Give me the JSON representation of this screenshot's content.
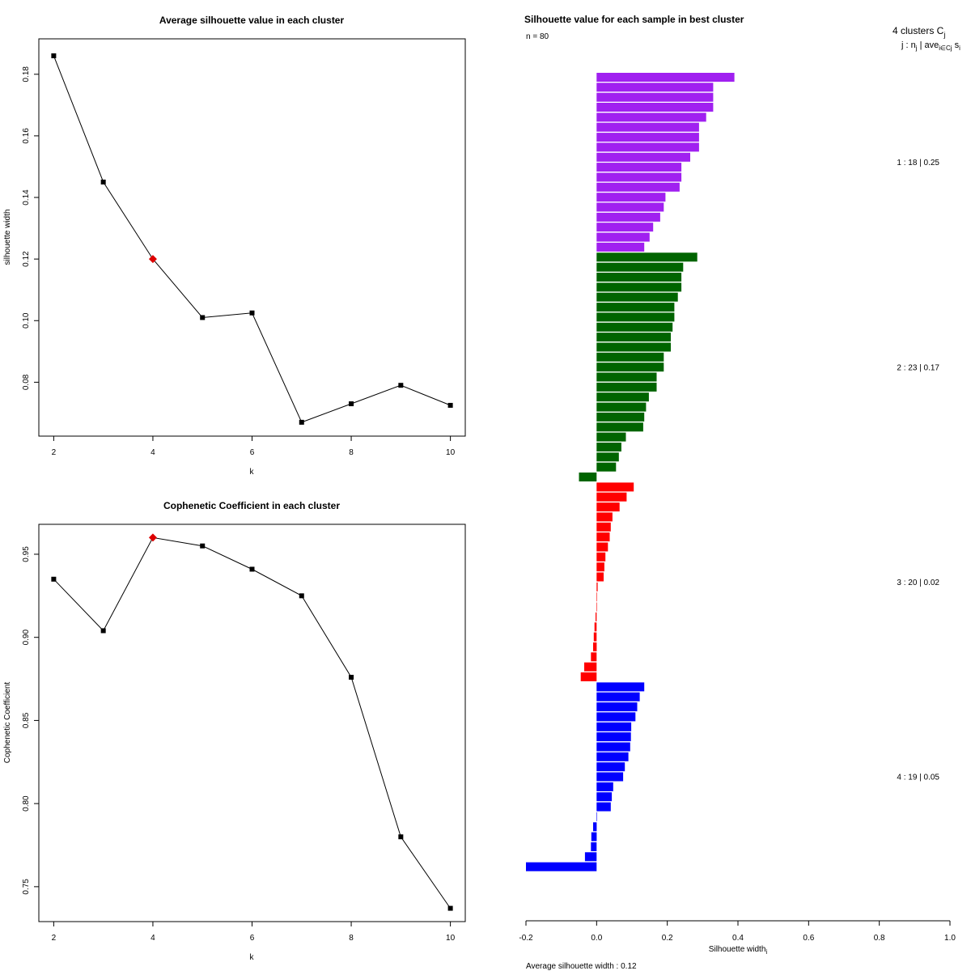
{
  "colors": {
    "line": "#000000",
    "highlight": "#dd0000",
    "cluster1": "#a020f0",
    "cluster2": "#006400",
    "cluster3": "#ff0000",
    "cluster4": "#0000ff"
  },
  "chart_data": [
    {
      "type": "line",
      "title": "Average silhouette value in each cluster",
      "xlabel": "k",
      "ylabel": "silhouette width",
      "x": [
        2,
        3,
        4,
        5,
        6,
        7,
        8,
        9,
        10
      ],
      "y": [
        0.186,
        0.145,
        0.12,
        0.101,
        0.1025,
        0.067,
        0.073,
        0.079,
        0.0725
      ],
      "highlight_x": 4,
      "xlim": [
        1.7,
        10.3
      ],
      "ylim": [
        0.0625,
        0.1915
      ],
      "xticks": [
        "2",
        "4",
        "6",
        "8",
        "10"
      ],
      "yticks": [
        "0.08",
        "0.10",
        "0.12",
        "0.14",
        "0.16",
        "0.18"
      ]
    },
    {
      "type": "line",
      "title": "Cophenetic Coefficient in each cluster",
      "xlabel": "k",
      "ylabel": "Cophenetic Coefficient",
      "x": [
        2,
        3,
        4,
        5,
        6,
        7,
        8,
        9,
        10
      ],
      "y": [
        0.935,
        0.904,
        0.96,
        0.955,
        0.941,
        0.925,
        0.876,
        0.78,
        0.737
      ],
      "highlight_x": 4,
      "xlim": [
        1.7,
        10.3
      ],
      "ylim": [
        0.729,
        0.968
      ],
      "xticks": [
        "2",
        "4",
        "6",
        "8",
        "10"
      ],
      "yticks": [
        "0.75",
        "0.80",
        "0.85",
        "0.90",
        "0.95"
      ]
    },
    {
      "type": "bar",
      "orientation": "horizontal",
      "title": "Silhouette value for each sample in best cluster",
      "subtitle": "n = 80",
      "xlabel": "Silhouette width",
      "xlabel_sub": "i",
      "xlim": [
        -0.2,
        1.0
      ],
      "xticks": [
        "-0.2",
        "0.0",
        "0.2",
        "0.4",
        "0.6",
        "0.8",
        "1.0"
      ],
      "legend_title": "4  clusters  C",
      "legend_title_sub": "j",
      "legend_header": "j :  n",
      "legend_header_sub": "j",
      "legend_header_rest": " | ave",
      "legend_header_sub2": "i∈Cj",
      "legend_header_end": "  s",
      "legend_header_end_sub": "i",
      "footer": "Average silhouette width :  0.12",
      "clusters": [
        {
          "label": "1 :   18  |  0.25",
          "color_key": "cluster1",
          "values": [
            0.39,
            0.33,
            0.33,
            0.33,
            0.31,
            0.29,
            0.29,
            0.29,
            0.265,
            0.24,
            0.24,
            0.235,
            0.195,
            0.19,
            0.18,
            0.16,
            0.15,
            0.135
          ]
        },
        {
          "label": "2 :   23  |  0.17",
          "color_key": "cluster2",
          "values": [
            0.285,
            0.245,
            0.24,
            0.24,
            0.23,
            0.22,
            0.22,
            0.215,
            0.21,
            0.21,
            0.19,
            0.19,
            0.17,
            0.17,
            0.148,
            0.14,
            0.135,
            0.132,
            0.083,
            0.07,
            0.063,
            0.055,
            -0.05
          ]
        },
        {
          "label": "3 :   20  |  0.02",
          "color_key": "cluster3",
          "values": [
            0.105,
            0.085,
            0.065,
            0.045,
            0.04,
            0.037,
            0.032,
            0.025,
            0.022,
            0.02,
            0.003,
            0,
            0,
            -0.003,
            -0.006,
            -0.008,
            -0.01,
            -0.016,
            -0.035,
            -0.045
          ]
        },
        {
          "label": "4 :   19  |  0.05",
          "color_key": "cluster4",
          "values": [
            0.135,
            0.122,
            0.115,
            0.11,
            0.098,
            0.097,
            0.095,
            0.09,
            0.08,
            0.075,
            0.047,
            0.043,
            0.04,
            0,
            -0.01,
            -0.015,
            -0.016,
            -0.033,
            -0.2
          ]
        }
      ]
    }
  ]
}
